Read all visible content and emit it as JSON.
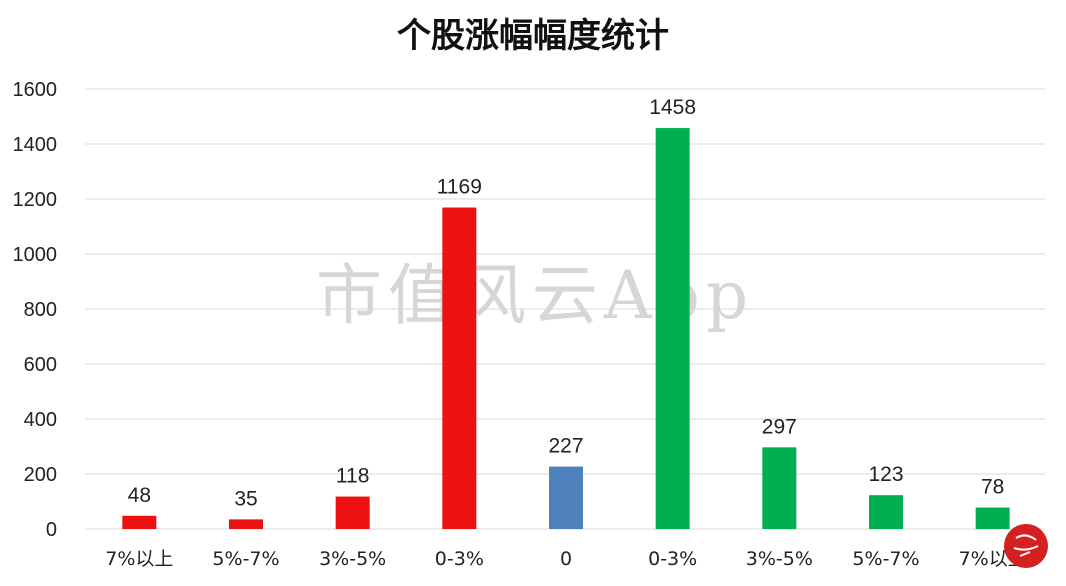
{
  "chart_data": {
    "type": "bar",
    "title": "个股涨幅幅度统计",
    "categories": [
      "7%以上",
      "5%-7%",
      "3%-5%",
      "0-3%",
      "0",
      "0-3%",
      "3%-5%",
      "5%-7%",
      "7%以上"
    ],
    "values": [
      48,
      35,
      118,
      1169,
      227,
      1458,
      297,
      123,
      78
    ],
    "colors": [
      "#ee1111",
      "#ee1111",
      "#ee1111",
      "#ee1111",
      "#4f81bd",
      "#00b050",
      "#00b050",
      "#00b050",
      "#00b050"
    ],
    "ylim": [
      0,
      1600
    ],
    "yticks": [
      0,
      200,
      400,
      600,
      800,
      1000,
      1200,
      1400,
      1600
    ],
    "grid": true,
    "xlabel": "",
    "ylabel": ""
  },
  "watermark": "市值风云App",
  "seal_color": "#d42020"
}
